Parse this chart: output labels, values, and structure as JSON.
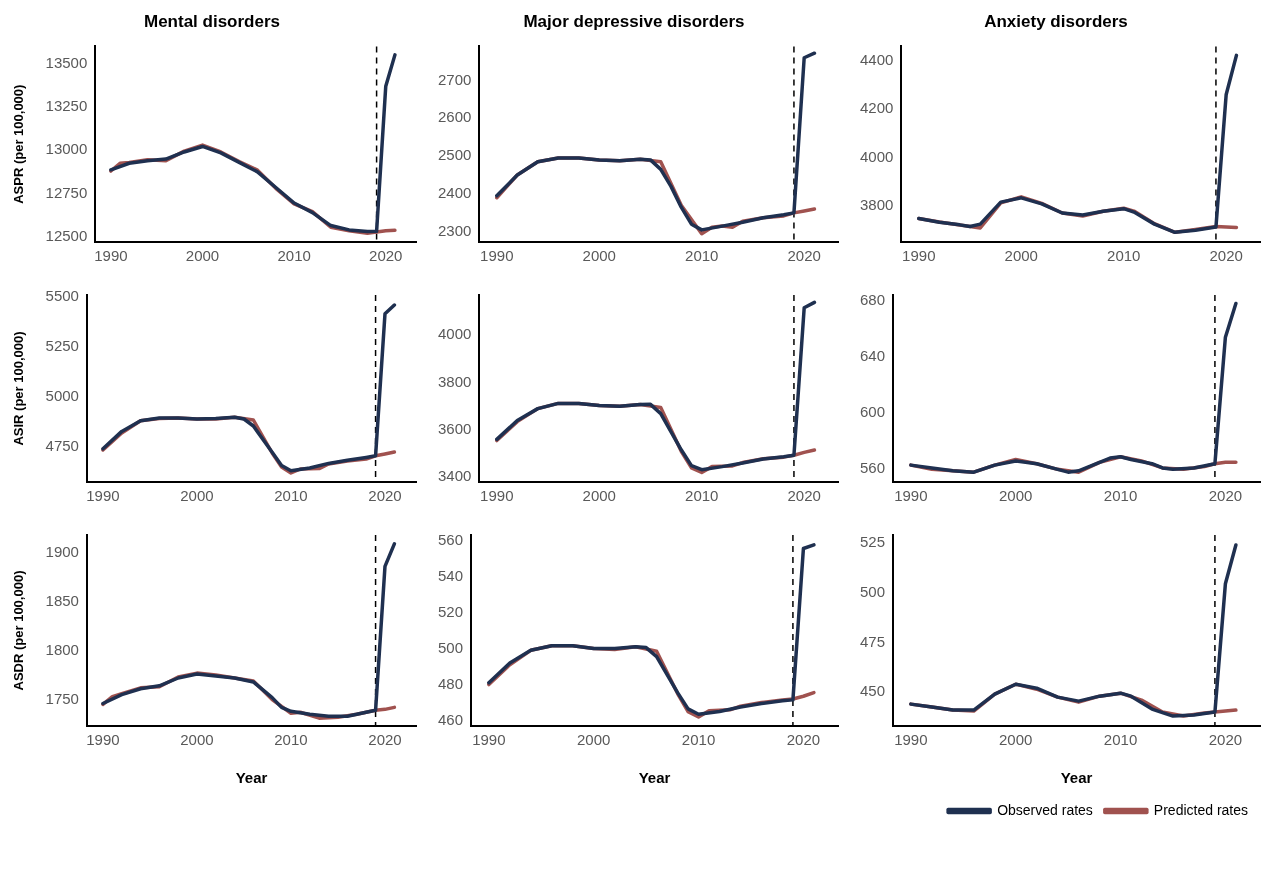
{
  "chart_data": [
    {
      "type": "line",
      "title": "Mental disorders",
      "ylabel": "ASPR (per 100,000)",
      "xlim": [
        1988.3,
        2023.3
      ],
      "xticks": [
        1990,
        2000,
        2010,
        2020
      ],
      "ylim": [
        12470,
        13600
      ],
      "yticks": [
        12500,
        12750,
        13000,
        13250,
        13500
      ],
      "ref_lines": [
        {
          "axis": "x",
          "value": 2019,
          "color": "#000000",
          "line_style": "dashed"
        }
      ],
      "series": [
        {
          "color": "#1f3050",
          "x": [
            1990,
            1992,
            1994,
            1996,
            1998,
            2000,
            2002,
            2004,
            2006,
            2008,
            2010,
            2012,
            2014,
            2016,
            2018,
            2019,
            2020,
            2021
          ],
          "values": [
            12887,
            12925,
            12940,
            12949,
            12990,
            13022,
            12985,
            12930,
            12875,
            12785,
            12695,
            12640,
            12565,
            12540,
            12530,
            12532,
            13370,
            13551
          ]
        },
        {
          "color": "#a0524f",
          "x": [
            1990,
            1991,
            1992,
            1994,
            1996,
            1998,
            2000,
            2002,
            2004,
            2006,
            2008,
            2010,
            2012,
            2014,
            2016,
            2018,
            2019,
            2020,
            2021
          ],
          "values": [
            12880,
            12925,
            12930,
            12945,
            12940,
            12995,
            13030,
            12990,
            12935,
            12885,
            12780,
            12690,
            12645,
            12555,
            12535,
            12520,
            12528,
            12535,
            12538
          ]
        }
      ]
    },
    {
      "type": "line",
      "title": "Major depressive disorders",
      "xlim": [
        1988.3,
        2023.3
      ],
      "xticks": [
        1990,
        2000,
        2010,
        2020
      ],
      "ylim": [
        2273,
        2790
      ],
      "yticks": [
        2300,
        2400,
        2500,
        2600,
        2700
      ],
      "ref_lines": [
        {
          "axis": "x",
          "value": 2019,
          "color": "#000000",
          "line_style": "dashed"
        }
      ],
      "series": [
        {
          "color": "#1f3050",
          "x": [
            1990,
            1992,
            1994,
            1996,
            1998,
            2000,
            2002,
            2004,
            2005,
            2006,
            2007,
            2008,
            2009,
            2010,
            2012,
            2014,
            2016,
            2018,
            2019,
            2020,
            2021
          ],
          "values": [
            2395,
            2450,
            2485,
            2495,
            2495,
            2490,
            2488,
            2492,
            2490,
            2465,
            2420,
            2365,
            2320,
            2305,
            2315,
            2325,
            2337,
            2345,
            2350,
            2760,
            2772
          ]
        },
        {
          "color": "#a0524f",
          "x": [
            1990,
            1991,
            1992,
            1994,
            1996,
            1998,
            2000,
            2002,
            2004,
            2006,
            2008,
            2010,
            2011,
            2012,
            2013,
            2014,
            2016,
            2018,
            2019,
            2020,
            2021
          ],
          "values": [
            2390,
            2420,
            2450,
            2485,
            2495,
            2495,
            2490,
            2488,
            2492,
            2485,
            2370,
            2295,
            2312,
            2315,
            2312,
            2328,
            2337,
            2342,
            2350,
            2355,
            2360
          ]
        }
      ]
    },
    {
      "type": "line",
      "title": "Anxiety disorders",
      "xlim": [
        1988.3,
        2023.3
      ],
      "xticks": [
        1990,
        2000,
        2010,
        2020
      ],
      "ylim": [
        3650,
        4460
      ],
      "yticks": [
        3800,
        4000,
        4200,
        4400
      ],
      "ref_lines": [
        {
          "axis": "x",
          "value": 2019,
          "color": "#000000",
          "line_style": "dashed"
        }
      ],
      "series": [
        {
          "color": "#1f3050",
          "x": [
            1990,
            1992,
            1994,
            1995,
            1996,
            1998,
            2000,
            2002,
            2004,
            2006,
            2008,
            2010,
            2011,
            2013,
            2015,
            2017,
            2019,
            2020,
            2021
          ],
          "values": [
            3747,
            3732,
            3721,
            3714,
            3724,
            3815,
            3833,
            3808,
            3770,
            3762,
            3777,
            3788,
            3774,
            3724,
            3690,
            3699,
            3712,
            4261,
            4423
          ]
        },
        {
          "color": "#a0524f",
          "x": [
            1990,
            1992,
            1994,
            1996,
            1998,
            2000,
            2002,
            2004,
            2006,
            2008,
            2010,
            2011,
            2013,
            2015,
            2017,
            2019,
            2020,
            2021
          ],
          "values": [
            3747,
            3733,
            3720,
            3708,
            3812,
            3837,
            3810,
            3770,
            3758,
            3777,
            3790,
            3778,
            3726,
            3690,
            3702,
            3714,
            3712,
            3710
          ]
        }
      ]
    },
    {
      "type": "line",
      "ylabel": "ASIR (per 100,000)",
      "xlim": [
        1988.3,
        2023.3
      ],
      "xticks": [
        1990,
        2000,
        2010,
        2020
      ],
      "ylim": [
        4575,
        5510
      ],
      "yticks": [
        4750,
        5000,
        5250,
        5500
      ],
      "ref_lines": [
        {
          "axis": "x",
          "value": 2019,
          "color": "#000000",
          "line_style": "dashed"
        }
      ],
      "series": [
        {
          "color": "#1f3050",
          "x": [
            1990,
            1992,
            1994,
            1996,
            1998,
            2000,
            2002,
            2004,
            2005,
            2006,
            2008,
            2009,
            2010,
            2012,
            2014,
            2016,
            2018,
            2019,
            2020,
            2021
          ],
          "values": [
            4741,
            4828,
            4881,
            4895,
            4895,
            4890,
            4893,
            4899,
            4890,
            4855,
            4724,
            4658,
            4631,
            4645,
            4668,
            4684,
            4698,
            4706,
            5416,
            5460
          ]
        },
        {
          "color": "#a0524f",
          "x": [
            1990,
            1992,
            1994,
            1996,
            1998,
            2000,
            2002,
            2004,
            2006,
            2008,
            2009,
            2010,
            2011,
            2013,
            2014,
            2016,
            2018,
            2019,
            2020,
            2021
          ],
          "values": [
            4735,
            4820,
            4881,
            4893,
            4895,
            4890,
            4890,
            4899,
            4885,
            4720,
            4650,
            4620,
            4640,
            4642,
            4665,
            4680,
            4690,
            4706,
            4715,
            4725
          ]
        }
      ]
    },
    {
      "type": "line",
      "xlim": [
        1988.3,
        2023.3
      ],
      "xticks": [
        1990,
        2000,
        2010,
        2020
      ],
      "ylim": [
        3380,
        4170
      ],
      "yticks": [
        3400,
        3600,
        3800,
        4000
      ],
      "ref_lines": [
        {
          "axis": "x",
          "value": 2019,
          "color": "#000000",
          "line_style": "dashed"
        }
      ],
      "series": [
        {
          "color": "#1f3050",
          "x": [
            1990,
            1992,
            1994,
            1996,
            1998,
            2000,
            2002,
            2004,
            2005,
            2006,
            2008,
            2009,
            2010,
            2012,
            2014,
            2016,
            2018,
            2019,
            2020,
            2021
          ],
          "values": [
            3560,
            3640,
            3690,
            3712,
            3712,
            3703,
            3700,
            3707,
            3708,
            3669,
            3516,
            3449,
            3432,
            3445,
            3460,
            3477,
            3487,
            3493,
            4116,
            4139
          ]
        },
        {
          "color": "#a0524f",
          "x": [
            1990,
            1992,
            1994,
            1996,
            1998,
            2000,
            2002,
            2004,
            2006,
            2008,
            2009,
            2010,
            2011,
            2013,
            2014,
            2016,
            2018,
            2019,
            2020,
            2021
          ],
          "values": [
            3555,
            3635,
            3690,
            3712,
            3712,
            3703,
            3700,
            3707,
            3695,
            3510,
            3440,
            3420,
            3445,
            3448,
            3462,
            3478,
            3485,
            3493,
            3505,
            3515
          ]
        }
      ]
    },
    {
      "type": "line",
      "xlim": [
        1988.3,
        2023.3
      ],
      "xticks": [
        1990,
        2000,
        2010,
        2020
      ],
      "ylim": [
        551,
        684
      ],
      "yticks": [
        560,
        600,
        640,
        680
      ],
      "ref_lines": [
        {
          "axis": "x",
          "value": 2019,
          "color": "#000000",
          "line_style": "dashed"
        }
      ],
      "series": [
        {
          "color": "#1f3050",
          "x": [
            1990,
            1992,
            1994,
            1996,
            1998,
            2000,
            2002,
            2004,
            2005,
            2006,
            2008,
            2009,
            2010,
            2011,
            2013,
            2014,
            2015,
            2017,
            2019,
            2020,
            2021
          ],
          "values": [
            563,
            561,
            559,
            558,
            563,
            566,
            564,
            560,
            558,
            559,
            565,
            568,
            569,
            567,
            564,
            561,
            560,
            561,
            564,
            654,
            678
          ]
        },
        {
          "color": "#a0524f",
          "x": [
            1990,
            1992,
            1994,
            1996,
            1998,
            2000,
            2002,
            2004,
            2006,
            2008,
            2010,
            2012,
            2014,
            2016,
            2018,
            2019,
            2020,
            2021
          ],
          "values": [
            563,
            560,
            559,
            558,
            563,
            567,
            564,
            560,
            558,
            565,
            569,
            566,
            561,
            560,
            562,
            564,
            565,
            565
          ]
        }
      ]
    },
    {
      "type": "line",
      "ylabel": "ASDR (per 100,000)",
      "xlabel": "Year",
      "xlim": [
        1988.3,
        2023.3
      ],
      "xticks": [
        1990,
        2000,
        2010,
        2020
      ],
      "ylim": [
        1723,
        1918
      ],
      "yticks": [
        1750,
        1800,
        1850,
        1900
      ],
      "ref_lines": [
        {
          "axis": "x",
          "value": 2019,
          "color": "#000000",
          "line_style": "dashed"
        }
      ],
      "series": [
        {
          "color": "#1f3050",
          "x": [
            1990,
            1992,
            1994,
            1996,
            1998,
            2000,
            2002,
            2004,
            2006,
            2008,
            2009,
            2010,
            2012,
            2014,
            2016,
            2018,
            2019,
            2020,
            2021
          ],
          "values": [
            1746,
            1755,
            1761,
            1764,
            1772,
            1776,
            1774,
            1772,
            1768,
            1752,
            1742,
            1738,
            1735,
            1733,
            1733,
            1737,
            1739,
            1886,
            1909
          ]
        },
        {
          "color": "#a0524f",
          "x": [
            1990,
            1991,
            1992,
            1994,
            1996,
            1998,
            2000,
            2002,
            2004,
            2006,
            2008,
            2010,
            2011,
            2013,
            2015,
            2017,
            2019,
            2020,
            2021
          ],
          "values": [
            1745,
            1753,
            1756,
            1762,
            1763,
            1773,
            1777,
            1775,
            1772,
            1769,
            1750,
            1736,
            1737,
            1731,
            1732,
            1735,
            1739,
            1740,
            1742
          ]
        }
      ]
    },
    {
      "type": "line",
      "xlabel": "Year",
      "xlim": [
        1988.3,
        2023.3
      ],
      "xticks": [
        1990,
        2000,
        2010,
        2020
      ],
      "ylim": [
        457,
        563
      ],
      "yticks": [
        460,
        480,
        500,
        520,
        540,
        560
      ],
      "ref_lines": [
        {
          "axis": "x",
          "value": 2019,
          "color": "#000000",
          "line_style": "dashed"
        }
      ],
      "series": [
        {
          "color": "#1f3050",
          "x": [
            1990,
            1992,
            1994,
            1996,
            1998,
            2000,
            2002,
            2004,
            2005,
            2006,
            2008,
            2009,
            2010,
            2012,
            2014,
            2016,
            2018,
            2019,
            2020,
            2021
          ],
          "values": [
            481,
            492,
            499,
            501.5,
            501.5,
            500,
            500,
            501,
            500.5,
            495.5,
            475.5,
            466.5,
            463.5,
            465,
            467.5,
            469.5,
            471,
            471.5,
            555.5,
            557.5
          ]
        },
        {
          "color": "#a0524f",
          "x": [
            1990,
            1992,
            1994,
            1996,
            1998,
            2000,
            2002,
            2004,
            2006,
            2008,
            2009,
            2010,
            2011,
            2013,
            2014,
            2016,
            2018,
            2019,
            2020,
            2021
          ],
          "values": [
            480,
            491,
            499,
            501.5,
            501.5,
            500,
            499.5,
            501,
            498.5,
            475,
            465,
            462,
            465.5,
            466,
            468,
            470,
            471.5,
            472,
            473.5,
            475.5
          ]
        }
      ]
    },
    {
      "type": "line",
      "xlabel": "Year",
      "xlim": [
        1988.3,
        2023.3
      ],
      "xticks": [
        1990,
        2000,
        2010,
        2020
      ],
      "ylim": [
        433,
        529
      ],
      "yticks": [
        450,
        475,
        500,
        525
      ],
      "legend": "bottom right",
      "ref_lines": [
        {
          "axis": "x",
          "value": 2019,
          "color": "#000000",
          "line_style": "dashed"
        }
      ],
      "series": [
        {
          "name": "Observed rates",
          "color": "#1f3050",
          "x": [
            1990,
            1992,
            1994,
            1996,
            1998,
            2000,
            2002,
            2004,
            2006,
            2008,
            2010,
            2011,
            2013,
            2015,
            2017,
            2019,
            2020,
            2021
          ],
          "values": [
            444,
            442.5,
            441,
            441,
            449,
            454,
            452,
            447.5,
            445.5,
            448,
            449.5,
            448,
            441.5,
            438,
            438.5,
            440,
            504.5,
            524
          ]
        },
        {
          "name": "Predicted rates",
          "color": "#a0524f",
          "x": [
            1990,
            1992,
            1994,
            1996,
            1998,
            2000,
            2002,
            2004,
            2006,
            2008,
            2010,
            2012,
            2014,
            2016,
            2018,
            2019,
            2020,
            2021
          ],
          "values": [
            444,
            442.5,
            441,
            440.5,
            449,
            454,
            451.5,
            447.5,
            445,
            448,
            449.5,
            446,
            440,
            438,
            439.5,
            440,
            440.5,
            441
          ]
        }
      ]
    }
  ]
}
